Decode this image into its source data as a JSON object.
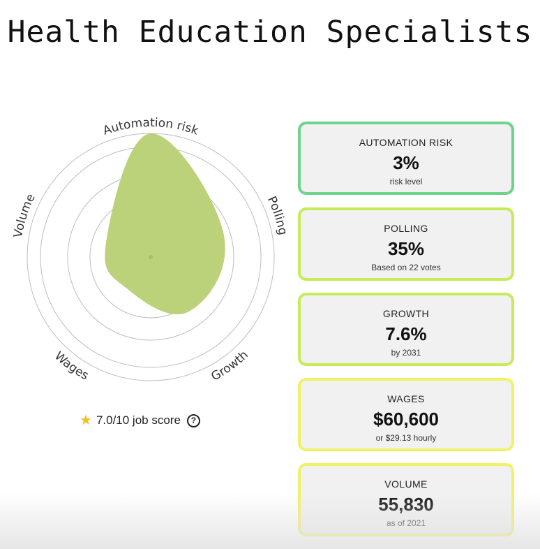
{
  "title": "Health Education Specialists",
  "chart_data": {
    "type": "radar",
    "axes": [
      "Automation risk",
      "Polling",
      "Growth",
      "Wages",
      "Volume"
    ],
    "series": [
      {
        "values": [
          1.0,
          0.62,
          0.54,
          0.32,
          0.38
        ],
        "color": "#bcd27a"
      }
    ],
    "rings": 4
  },
  "score": {
    "text": "7.0/10 job score",
    "icon": "star-icon",
    "help_icon": "question-circle-icon"
  },
  "cards": [
    {
      "label": "AUTOMATION RISK",
      "value": "3%",
      "sub": "risk level",
      "color": "#6fd48b"
    },
    {
      "label": "POLLING",
      "value": "35%",
      "sub": "Based on 22 votes",
      "color": "#c6ec5a"
    },
    {
      "label": "GROWTH",
      "value": "7.6%",
      "sub": "by 2031",
      "color": "#c6ec5a"
    },
    {
      "label": "WAGES",
      "value": "$60,600",
      "sub": "or $29.13 hourly",
      "color": "#f0f266"
    },
    {
      "label": "VOLUME",
      "value": "55,830",
      "sub": "as of 2021",
      "color": "#f0f266"
    }
  ]
}
